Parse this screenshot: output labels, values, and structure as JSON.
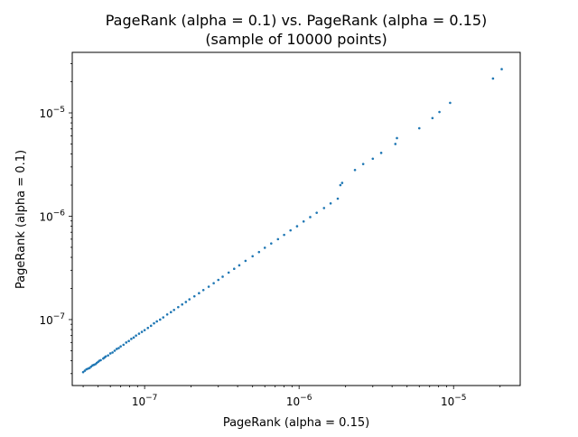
{
  "chart_data": {
    "type": "scatter",
    "title": "PageRank (alpha = 0.1) vs. PageRank (alpha = 0.15)",
    "subtitle": "(sample of 10000 points)",
    "xlabel": "PageRank (alpha = 0.15)",
    "ylabel": "PageRank (alpha = 0.1)",
    "xscale": "log",
    "yscale": "log",
    "xlim": [
      3.4e-08,
      2.7e-05
    ],
    "ylim": [
      2.3e-08,
      3.85e-05
    ],
    "x_ticks": [
      {
        "value": 1e-07,
        "base": "10",
        "exp": "−7"
      },
      {
        "value": 1e-06,
        "base": "10",
        "exp": "−6"
      },
      {
        "value": 1e-05,
        "base": "10",
        "exp": "−5"
      }
    ],
    "y_ticks": [
      {
        "value": 1e-07,
        "base": "10",
        "exp": "−7"
      },
      {
        "value": 1e-06,
        "base": "10",
        "exp": "−6"
      },
      {
        "value": 1e-05,
        "base": "10",
        "exp": "−5"
      }
    ],
    "grid": false,
    "legend": "none",
    "series_color": "#1f77b4",
    "points": [
      [
        4e-08,
        3.1e-08
      ],
      [
        4.1e-08,
        3.2e-08
      ],
      [
        4.2e-08,
        3.3e-08
      ],
      [
        4.3e-08,
        3.35e-08
      ],
      [
        4.4e-08,
        3.4e-08
      ],
      [
        4.5e-08,
        3.5e-08
      ],
      [
        4.6e-08,
        3.6e-08
      ],
      [
        4.7e-08,
        3.65e-08
      ],
      [
        4.8e-08,
        3.7e-08
      ],
      [
        4.9e-08,
        3.8e-08
      ],
      [
        5e-08,
        3.9e-08
      ],
      [
        5.1e-08,
        4e-08
      ],
      [
        5.2e-08,
        4.05e-08
      ],
      [
        5.4e-08,
        4.2e-08
      ],
      [
        5.5e-08,
        4.3e-08
      ],
      [
        5.6e-08,
        4.4e-08
      ],
      [
        5.8e-08,
        4.5e-08
      ],
      [
        6e-08,
        4.7e-08
      ],
      [
        6.2e-08,
        4.8e-08
      ],
      [
        6.4e-08,
        5e-08
      ],
      [
        6.6e-08,
        5.2e-08
      ],
      [
        6.8e-08,
        5.3e-08
      ],
      [
        7e-08,
        5.5e-08
      ],
      [
        7.3e-08,
        5.7e-08
      ],
      [
        7.6e-08,
        6e-08
      ],
      [
        7.9e-08,
        6.2e-08
      ],
      [
        8.2e-08,
        6.5e-08
      ],
      [
        8.5e-08,
        6.7e-08
      ],
      [
        8.8e-08,
        7e-08
      ],
      [
        9.2e-08,
        7.3e-08
      ],
      [
        9.6e-08,
        7.6e-08
      ],
      [
        1e-07,
        7.9e-08
      ],
      [
        1.05e-07,
        8.3e-08
      ],
      [
        1.1e-07,
        8.7e-08
      ],
      [
        1.15e-07,
        9.2e-08
      ],
      [
        1.2e-07,
        9.6e-08
      ],
      [
        1.26e-07,
        1e-07
      ],
      [
        1.32e-07,
        1.05e-07
      ],
      [
        1.4e-07,
        1.12e-07
      ],
      [
        1.48e-07,
        1.18e-07
      ],
      [
        1.55e-07,
        1.24e-07
      ],
      [
        1.65e-07,
        1.32e-07
      ],
      [
        1.75e-07,
        1.4e-07
      ],
      [
        1.85e-07,
        1.48e-07
      ],
      [
        1.95e-07,
        1.57e-07
      ],
      [
        2.1e-07,
        1.68e-07
      ],
      [
        2.25e-07,
        1.8e-07
      ],
      [
        2.4e-07,
        1.93e-07
      ],
      [
        2.6e-07,
        2.08e-07
      ],
      [
        2.8e-07,
        2.25e-07
      ],
      [
        3e-07,
        2.42e-07
      ],
      [
        3.2e-07,
        2.6e-07
      ],
      [
        3.5e-07,
        2.85e-07
      ],
      [
        3.8e-07,
        3.1e-07
      ],
      [
        4.1e-07,
        3.35e-07
      ],
      [
        4.5e-07,
        3.7e-07
      ],
      [
        5e-07,
        4.1e-07
      ],
      [
        5.5e-07,
        4.5e-07
      ],
      [
        6e-07,
        4.95e-07
      ],
      [
        6.6e-07,
        5.45e-07
      ],
      [
        7.3e-07,
        6e-07
      ],
      [
        8e-07,
        6.6e-07
      ],
      [
        8.8e-07,
        7.3e-07
      ],
      [
        9.7e-07,
        8e-07
      ],
      [
        1.07e-06,
        8.9e-07
      ],
      [
        1.18e-06,
        9.8e-07
      ],
      [
        1.3e-06,
        1.08e-06
      ],
      [
        1.45e-06,
        1.2e-06
      ],
      [
        1.6e-06,
        1.33e-06
      ],
      [
        1.78e-06,
        1.48e-06
      ],
      [
        1.85e-06,
        2e-06
      ],
      [
        1.9e-06,
        2.1e-06
      ],
      [
        2.3e-06,
        2.8e-06
      ],
      [
        2.6e-06,
        3.2e-06
      ],
      [
        3e-06,
        3.6e-06
      ],
      [
        3.4e-06,
        4.1e-06
      ],
      [
        4.2e-06,
        5e-06
      ],
      [
        4.3e-06,
        5.7e-06
      ],
      [
        6e-06,
        7.1e-06
      ],
      [
        7.3e-06,
        8.9e-06
      ],
      [
        8.1e-06,
        1.02e-05
      ],
      [
        9.5e-06,
        1.25e-05
      ],
      [
        1.8e-05,
        2.15e-05
      ],
      [
        2.05e-05,
        2.65e-05
      ]
    ]
  }
}
